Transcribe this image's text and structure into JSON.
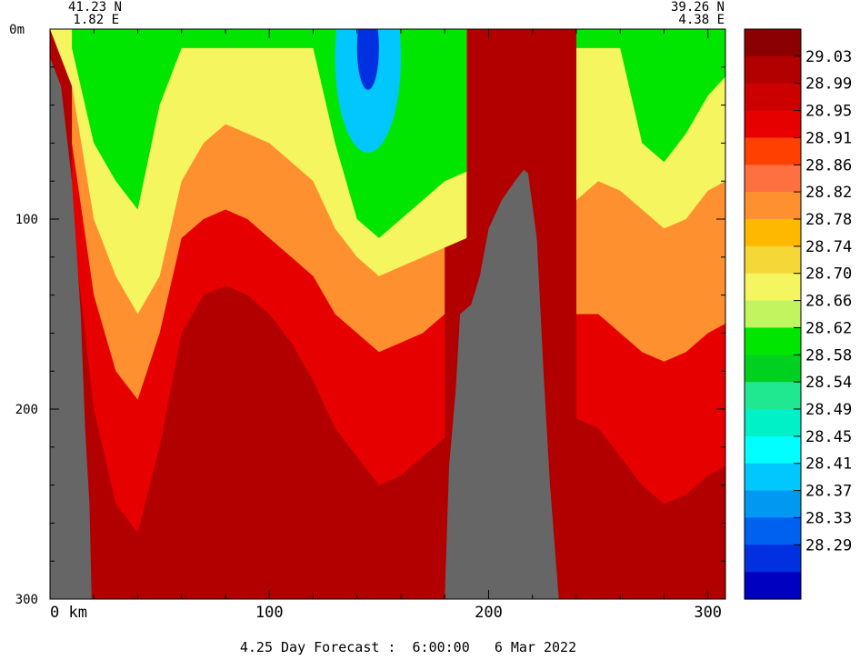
{
  "chart_data": {
    "type": "heatmap",
    "title": "",
    "footer": "4.25 Day Forecast :  6:00:00   6 Mar 2022",
    "start_point": {
      "lat": "41.23 N",
      "lon": "1.82 E"
    },
    "end_point": {
      "lat": "39.26 N",
      "lon": "4.38 E"
    },
    "x_axis": {
      "unit": "km",
      "range": [
        0,
        308
      ],
      "ticks": [
        {
          "value": 0,
          "label": "0 km"
        },
        {
          "value": 100,
          "label": "100"
        },
        {
          "value": 200,
          "label": "200"
        },
        {
          "value": 300,
          "label": "300"
        }
      ]
    },
    "y_axis": {
      "unit": "m",
      "range": [
        0,
        300
      ],
      "inverted": true,
      "ticks": [
        {
          "value": 0,
          "label": "0m"
        },
        {
          "value": 100,
          "label": "100"
        },
        {
          "value": 200,
          "label": "200"
        },
        {
          "value": 300,
          "label": "300"
        }
      ]
    },
    "colorbar": {
      "labels": [
        "29.03",
        "28.99",
        "28.95",
        "28.91",
        "28.86",
        "28.82",
        "28.78",
        "28.74",
        "28.70",
        "28.66",
        "28.62",
        "28.58",
        "28.54",
        "28.49",
        "28.45",
        "28.41",
        "28.37",
        "28.33",
        "28.29"
      ],
      "colors": [
        "#8b0000",
        "#b20000",
        "#cc0000",
        "#e60000",
        "#ff4000",
        "#ff7040",
        "#ff9030",
        "#ffb800",
        "#f5d838",
        "#f5f560",
        "#c0f560",
        "#00e600",
        "#00d020",
        "#20e890",
        "#00f0c8",
        "#00ffff",
        "#00c8ff",
        "#0098f0",
        "#0060f0",
        "#0030e0",
        "#0000c0"
      ]
    },
    "bathymetry_color": "#666666",
    "temperature_field": {
      "description_hint": "",
      "x_km": [
        0,
        10,
        20,
        30,
        40,
        50,
        60,
        70,
        80,
        90,
        100,
        110,
        120,
        130,
        140,
        150,
        160,
        170,
        180,
        190,
        200,
        210,
        220,
        230,
        240,
        250,
        260,
        270,
        280,
        290,
        300,
        308
      ],
      "isotherm_depths_m": {
        "28.66": [
          null,
          10,
          60,
          80,
          95,
          40,
          10,
          10,
          10,
          10,
          10,
          10,
          10,
          60,
          100,
          110,
          100,
          90,
          80,
          75,
          null,
          null,
          null,
          null,
          10,
          10,
          10,
          60,
          70,
          55,
          35,
          25
        ],
        "28.74": [
          0,
          30,
          100,
          130,
          150,
          130,
          80,
          60,
          50,
          55,
          60,
          70,
          80,
          105,
          120,
          130,
          125,
          120,
          115,
          110,
          null,
          null,
          null,
          null,
          90,
          80,
          85,
          95,
          105,
          100,
          85,
          80
        ],
        "28.86": [
          null,
          60,
          140,
          180,
          195,
          160,
          110,
          100,
          95,
          100,
          110,
          120,
          130,
          150,
          160,
          170,
          165,
          160,
          150,
          null,
          null,
          null,
          null,
          null,
          150,
          150,
          160,
          170,
          175,
          170,
          160,
          155
        ],
        "28.99": [
          null,
          100,
          200,
          250,
          265,
          220,
          160,
          140,
          135,
          140,
          150,
          165,
          185,
          210,
          225,
          240,
          235,
          225,
          215,
          null,
          null,
          null,
          null,
          null,
          205,
          210,
          225,
          240,
          250,
          245,
          235,
          230
        ]
      }
    }
  }
}
